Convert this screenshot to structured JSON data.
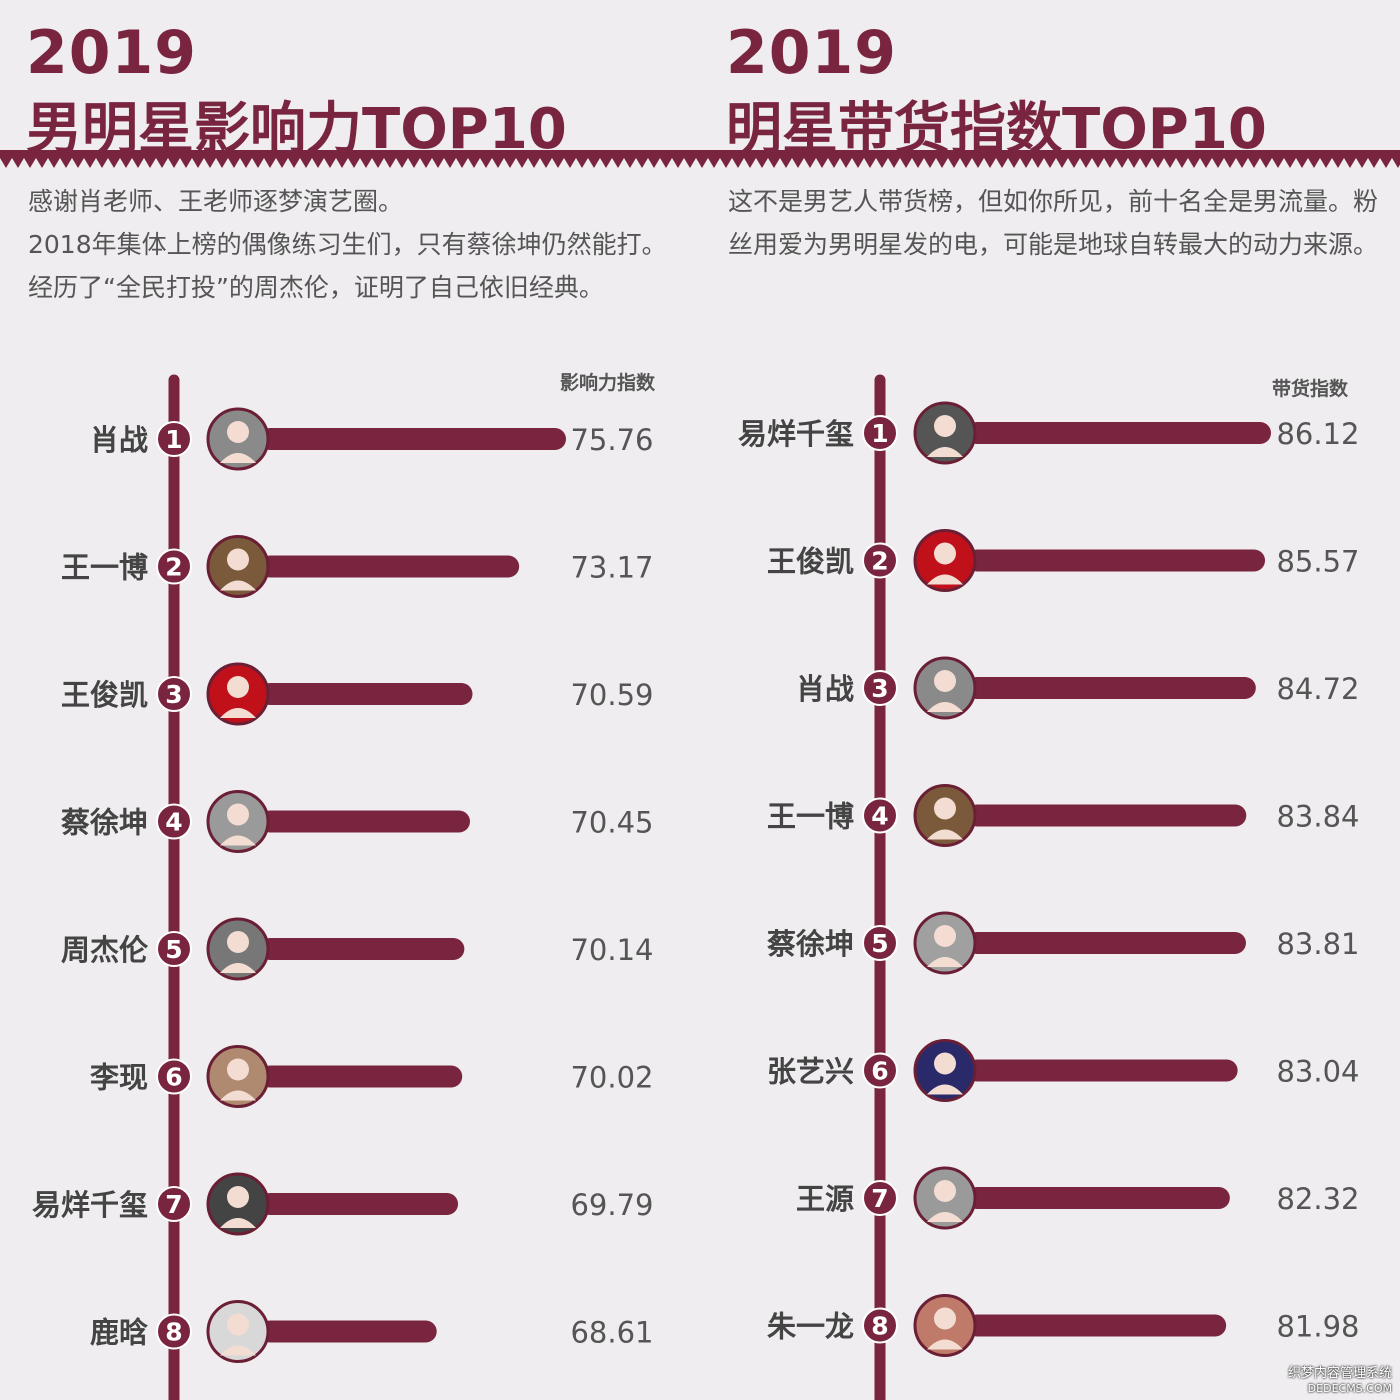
{
  "colors": {
    "accent": "#7a2540",
    "text_dark": "#444444",
    "value_text": "#555555",
    "background": "#efedef"
  },
  "left": {
    "year": "2019",
    "title": "男明星影响力TOP10",
    "description": [
      "感谢肖老师、王老师逐梦演艺圈。",
      "2018年集体上榜的偶像练习生们，只有蔡徐坤仍然能打。经历了“全民打投”的周杰伦，证明了自己依旧经典。"
    ],
    "index_label": "影响力指数"
  },
  "right": {
    "year": "2019",
    "title": "明星带货指数TOP10",
    "description": [
      "这不是男艺人带货榜，但如你所见，前十名全是男流量。粉丝用爱为男明星发的电，可能是地球自转最大的动力来源。"
    ],
    "index_label": "带货指数"
  },
  "chart_data": [
    {
      "type": "bar",
      "orientation": "horizontal",
      "title": "男明星影响力TOP10",
      "ylabel": "影响力指数",
      "categories": [
        "肖战",
        "王一博",
        "王俊凯",
        "蔡徐坤",
        "周杰伦",
        "李现",
        "易烊千玺",
        "鹿晗"
      ],
      "ranks": [
        "1",
        "2",
        "3",
        "4",
        "5",
        "6",
        "7",
        "8"
      ],
      "values": [
        75.76,
        73.17,
        70.59,
        70.45,
        70.14,
        70.02,
        69.79,
        68.61
      ],
      "value_labels": [
        "75.76",
        "73.17",
        "70.59",
        "70.45",
        "70.14",
        "70.02",
        "69.79",
        "68.61"
      ],
      "avatar_colors": [
        "#8a8a8a",
        "#7a5a3a",
        "#c0101a",
        "#9a9a9a",
        "#777777",
        "#b08a70",
        "#444444",
        "#d8d8d8"
      ]
    },
    {
      "type": "bar",
      "orientation": "horizontal",
      "title": "明星带货指数TOP10",
      "ylabel": "带货指数",
      "categories": [
        "易烊千玺",
        "王俊凯",
        "肖战",
        "王一博",
        "蔡徐坤",
        "张艺兴",
        "王源",
        "朱一龙"
      ],
      "ranks": [
        "1",
        "2",
        "3",
        "4",
        "5",
        "6",
        "7",
        "8"
      ],
      "values": [
        86.12,
        85.57,
        84.72,
        83.84,
        83.81,
        83.04,
        82.32,
        81.98
      ],
      "value_labels": [
        "86.12",
        "85.57",
        "84.72",
        "83.84",
        "83.81",
        "83.04",
        "82.32",
        "81.98"
      ],
      "avatar_colors": [
        "#555555",
        "#c0101a",
        "#8a8a8a",
        "#7a5a3a",
        "#a0a0a0",
        "#2a2a6a",
        "#9a9a9a",
        "#c07a6a"
      ]
    }
  ],
  "watermark": {
    "line1": "织梦内容管理系统",
    "line2": "DEDECMS.COM"
  }
}
